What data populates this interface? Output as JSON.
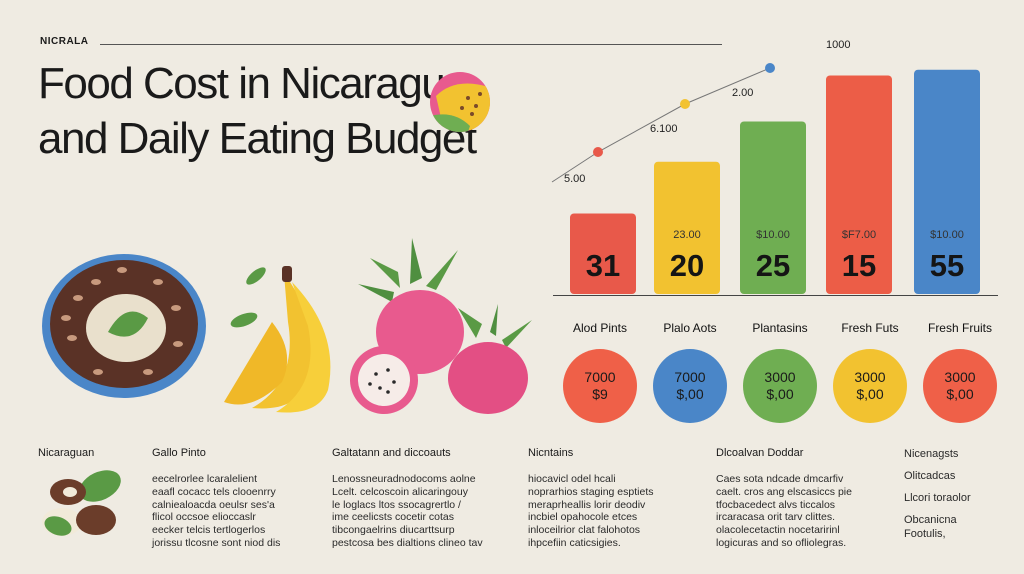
{
  "header": {
    "kicker": "NICRALA",
    "title": "Food Cost in Nicaragua and Daily Eating Budget"
  },
  "chart_data": {
    "type": "bar",
    "title": "",
    "xlabel": "",
    "ylabel": "",
    "ylim": [
      0,
      55
    ],
    "categories": [
      "",
      "",
      "",
      "",
      ""
    ],
    "values": [
      31,
      20,
      25,
      15,
      55
    ],
    "bar_heights_data": [
      14,
      23,
      30,
      38,
      39
    ],
    "bar_colors": [
      "#e8594a",
      "#f2c230",
      "#6fae52",
      "#ec5d47",
      "#4a86c8"
    ],
    "value_labels": [
      "31",
      "20",
      "25",
      "15",
      "55"
    ],
    "bar_sublabels": [
      "",
      "23.00",
      "$10.00",
      "$F7.00",
      "$10.00"
    ],
    "annotations": [
      {
        "label": "5.00",
        "dot_color": "#555555"
      },
      {
        "label": "6.100",
        "dot_color": "#e8594a"
      },
      {
        "label": "2.00",
        "dot_color": "#f2c230"
      },
      {
        "label": "1000",
        "dot_color": "#4a86c8"
      }
    ]
  },
  "circles": [
    {
      "label": "Alod Pints",
      "line1": "7000",
      "line2": "$9",
      "color": "#ef6048"
    },
    {
      "label": "Plalo Aots",
      "line1": "7000",
      "line2": "$,00",
      "color": "#4a86c8"
    },
    {
      "label": "Plantasins",
      "line1": "3000",
      "line2": "$,00",
      "color": "#6fae52"
    },
    {
      "label": "Fresh Futs",
      "line1": "3000",
      "line2": "$,00",
      "color": "#f2c230"
    },
    {
      "label": "Fresh Fruits",
      "line1": "3000",
      "line2": "$,00",
      "color": "#ef6048"
    }
  ],
  "bottom": {
    "side_label": "Nicaraguan",
    "columns": [
      {
        "heading": "Gallo Pinto",
        "lines": [
          "eecelrorlee lcaralelient",
          "eaafl cocacc tels clooenrry",
          "calniealoacda oeulsr ses'a",
          "flicol occsoe elioccaslr",
          "eecker telcis tertlogerlos",
          "jorissu tlcosne sont niod dis"
        ]
      },
      {
        "heading": "Galtatann and diccoauts",
        "lines": [
          "Lenossneuradnodocoms aolne",
          "Lcelt. celcoscoin alicaringouy",
          "le loglacs ltos ssocagrertlo /",
          "ime ceelicsts cocetir cotas",
          "tibcongaelrins diucarttsurp",
          "pestcosa bes dialtions clineo tav"
        ]
      },
      {
        "heading": "Nicntains",
        "lines": [
          "hiocavicl odel hcali",
          "noprarhios staging esptiets",
          "meraprheallis lorir deodiv",
          "incbiel opahocole etces",
          "inloceilrior clat falohotos",
          "ihpcefiin caticsigies."
        ]
      },
      {
        "heading": "Dlcoalvan Doddar",
        "lines": [
          "Caes sota ndcade dmcarfiv",
          "caelt. cros ang elscasiccs pie",
          "tfocbacedect alvs ticcalos",
          "ircaracasa orit tarv clittes.",
          "olacolecetactin nocetaririnl",
          "logicuras and so ofliolegras."
        ]
      }
    ],
    "side_items": [
      "Nicenagsts",
      "Olitcadcas",
      "Llcori toraolor",
      "Obcanicna",
      "Footulis,"
    ]
  }
}
